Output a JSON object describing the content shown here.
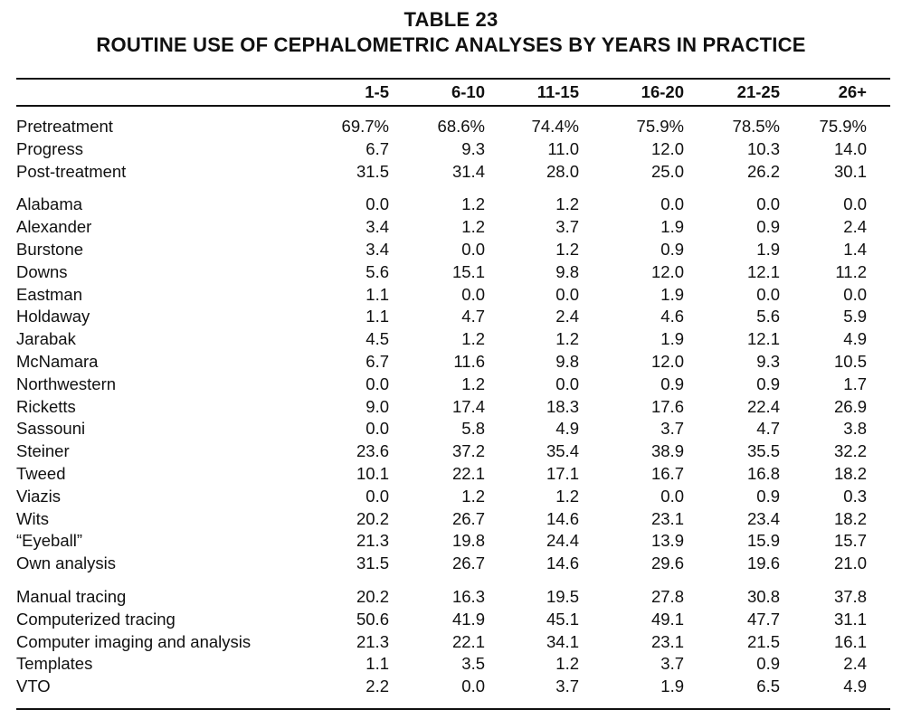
{
  "table": {
    "title": "TABLE 23",
    "subtitle": "ROUTINE USE OF CEPHALOMETRIC ANALYSES BY YEARS IN PRACTICE",
    "columns": [
      "1-5",
      "6-10",
      "11-15",
      "16-20",
      "21-25",
      "26+"
    ],
    "groups": [
      {
        "rows": [
          {
            "label": "Pretreatment",
            "values": [
              "69.7%",
              "68.6%",
              "74.4%",
              "75.9%",
              "78.5%",
              "75.9%"
            ]
          },
          {
            "label": "Progress",
            "values": [
              "6.7",
              "9.3",
              "11.0",
              "12.0",
              "10.3",
              "14.0"
            ]
          },
          {
            "label": "Post-treatment",
            "values": [
              "31.5",
              "31.4",
              "28.0",
              "25.0",
              "26.2",
              "30.1"
            ]
          }
        ]
      },
      {
        "rows": [
          {
            "label": "Alabama",
            "values": [
              "0.0",
              "1.2",
              "1.2",
              "0.0",
              "0.0",
              "0.0"
            ]
          },
          {
            "label": "Alexander",
            "values": [
              "3.4",
              "1.2",
              "3.7",
              "1.9",
              "0.9",
              "2.4"
            ]
          },
          {
            "label": "Burstone",
            "values": [
              "3.4",
              "0.0",
              "1.2",
              "0.9",
              "1.9",
              "1.4"
            ]
          },
          {
            "label": "Downs",
            "values": [
              "5.6",
              "15.1",
              "9.8",
              "12.0",
              "12.1",
              "11.2"
            ]
          },
          {
            "label": "Eastman",
            "values": [
              "1.1",
              "0.0",
              "0.0",
              "1.9",
              "0.0",
              "0.0"
            ]
          },
          {
            "label": "Holdaway",
            "values": [
              "1.1",
              "4.7",
              "2.4",
              "4.6",
              "5.6",
              "5.9"
            ]
          },
          {
            "label": "Jarabak",
            "values": [
              "4.5",
              "1.2",
              "1.2",
              "1.9",
              "12.1",
              "4.9"
            ]
          },
          {
            "label": "McNamara",
            "values": [
              "6.7",
              "11.6",
              "9.8",
              "12.0",
              "9.3",
              "10.5"
            ]
          },
          {
            "label": "Northwestern",
            "values": [
              "0.0",
              "1.2",
              "0.0",
              "0.9",
              "0.9",
              "1.7"
            ]
          },
          {
            "label": "Ricketts",
            "values": [
              "9.0",
              "17.4",
              "18.3",
              "17.6",
              "22.4",
              "26.9"
            ]
          },
          {
            "label": "Sassouni",
            "values": [
              "0.0",
              "5.8",
              "4.9",
              "3.7",
              "4.7",
              "3.8"
            ]
          },
          {
            "label": "Steiner",
            "values": [
              "23.6",
              "37.2",
              "35.4",
              "38.9",
              "35.5",
              "32.2"
            ]
          },
          {
            "label": "Tweed",
            "values": [
              "10.1",
              "22.1",
              "17.1",
              "16.7",
              "16.8",
              "18.2"
            ]
          },
          {
            "label": "Viazis",
            "values": [
              "0.0",
              "1.2",
              "1.2",
              "0.0",
              "0.9",
              "0.3"
            ]
          },
          {
            "label": "Wits",
            "values": [
              "20.2",
              "26.7",
              "14.6",
              "23.1",
              "23.4",
              "18.2"
            ]
          },
          {
            "label": "“Eyeball”",
            "values": [
              "21.3",
              "19.8",
              "24.4",
              "13.9",
              "15.9",
              "15.7"
            ]
          },
          {
            "label": "Own analysis",
            "values": [
              "31.5",
              "26.7",
              "14.6",
              "29.6",
              "19.6",
              "21.0"
            ]
          }
        ]
      },
      {
        "rows": [
          {
            "label": "Manual tracing",
            "values": [
              "20.2",
              "16.3",
              "19.5",
              "27.8",
              "30.8",
              "37.8"
            ]
          },
          {
            "label": "Computerized tracing",
            "values": [
              "50.6",
              "41.9",
              "45.1",
              "49.1",
              "47.7",
              "31.1"
            ]
          },
          {
            "label": "Computer imaging and analysis",
            "values": [
              "21.3",
              "22.1",
              "34.1",
              "23.1",
              "21.5",
              "16.1"
            ]
          },
          {
            "label": "Templates",
            "values": [
              "1.1",
              "3.5",
              "1.2",
              "3.7",
              "0.9",
              "2.4"
            ]
          },
          {
            "label": "VTO",
            "values": [
              "2.2",
              "0.0",
              "3.7",
              "1.9",
              "6.5",
              "4.9"
            ]
          }
        ]
      }
    ]
  }
}
